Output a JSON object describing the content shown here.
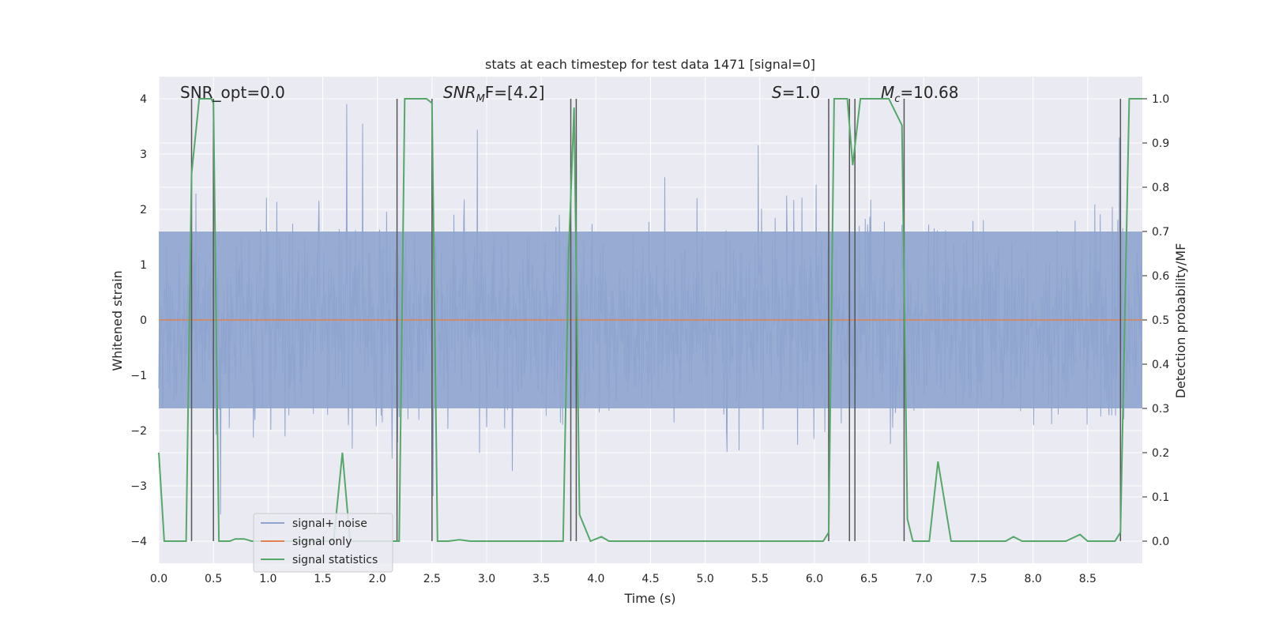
{
  "chart_data": {
    "type": "line",
    "title": "stats at each timestep for test data 1471 [signal=0]",
    "xlabel": "Time (s)",
    "ylabel_left": "Whitened strain",
    "ylabel_right": "Detection probability/MF",
    "xlim": [
      0.0,
      9.0
    ],
    "ylim_left": [
      -4.4,
      4.4
    ],
    "ylim_right": [
      -0.05,
      1.05
    ],
    "x_ticks": [
      "0.0",
      "0.5",
      "1.0",
      "1.5",
      "2.0",
      "2.5",
      "3.0",
      "3.5",
      "4.0",
      "4.5",
      "5.0",
      "5.5",
      "6.0",
      "6.5",
      "7.0",
      "7.5",
      "8.0",
      "8.5"
    ],
    "y_ticks_left": [
      "−4",
      "−3",
      "−2",
      "−1",
      "0",
      "1",
      "2",
      "3",
      "4"
    ],
    "y_ticks_right": [
      "0.0",
      "0.1",
      "0.2",
      "0.3",
      "0.4",
      "0.5",
      "0.6",
      "0.7",
      "0.8",
      "0.9",
      "1.0"
    ],
    "annotations": {
      "snr_opt": "SNR_opt=0.0",
      "snr_mf_base": "SNR",
      "snr_mf_sub": "M",
      "snr_mf_rest": "F=[4.2]",
      "s_stat": "S",
      "s_rest": "=1.0",
      "mc_base": "M",
      "mc_sub": "c",
      "mc_rest": "=10.68"
    },
    "legend": {
      "placement": "lower-left",
      "entries": [
        "signal+ noise",
        "signal only",
        "signal statistics"
      ]
    },
    "colors": {
      "noise": "#8fa5cf",
      "signal_only": "#dd8452",
      "statistics": "#55a868",
      "vlines": "#555555",
      "background": "#eaeaf2",
      "grid": "#ffffff"
    },
    "series": [
      {
        "name": "signal+ noise",
        "note": "whitened strain, dense noise, roughly |y| up to ~2 typical with spikes to ~4"
      },
      {
        "name": "signal only",
        "values_constant": 0.0
      },
      {
        "name": "signal statistics",
        "axis": "right",
        "points": [
          [
            0.0,
            0.2
          ],
          [
            0.05,
            0.0
          ],
          [
            0.25,
            0.0
          ],
          [
            0.3,
            0.83
          ],
          [
            0.37,
            1.0
          ],
          [
            0.48,
            1.0
          ],
          [
            0.5,
            0.99
          ],
          [
            0.55,
            0.0
          ],
          [
            0.65,
            0.0
          ],
          [
            0.7,
            0.005
          ],
          [
            0.78,
            0.005
          ],
          [
            0.85,
            0.0
          ],
          [
            1.6,
            0.0
          ],
          [
            1.68,
            0.2
          ],
          [
            1.75,
            0.0
          ],
          [
            2.2,
            0.0
          ],
          [
            2.25,
            1.0
          ],
          [
            2.45,
            1.0
          ],
          [
            2.5,
            0.99
          ],
          [
            2.55,
            0.0
          ],
          [
            2.65,
            0.0
          ],
          [
            2.75,
            0.003
          ],
          [
            2.85,
            0.0
          ],
          [
            3.7,
            0.0
          ],
          [
            3.75,
            0.65
          ],
          [
            3.8,
            0.98
          ],
          [
            3.85,
            0.06
          ],
          [
            3.95,
            0.0
          ],
          [
            4.05,
            0.01
          ],
          [
            4.12,
            0.0
          ],
          [
            6.08,
            0.0
          ],
          [
            6.13,
            0.02
          ],
          [
            6.18,
            1.0
          ],
          [
            6.3,
            1.0
          ],
          [
            6.35,
            0.85
          ],
          [
            6.42,
            1.0
          ],
          [
            6.68,
            1.0
          ],
          [
            6.8,
            0.94
          ],
          [
            6.85,
            0.05
          ],
          [
            6.9,
            0.0
          ],
          [
            7.05,
            0.0
          ],
          [
            7.13,
            0.18
          ],
          [
            7.25,
            0.0
          ],
          [
            7.75,
            0.0
          ],
          [
            7.82,
            0.01
          ],
          [
            7.9,
            0.0
          ],
          [
            8.3,
            0.0
          ],
          [
            8.43,
            0.015
          ],
          [
            8.5,
            0.0
          ],
          [
            8.75,
            0.0
          ],
          [
            8.8,
            0.02
          ],
          [
            8.88,
            1.0
          ],
          [
            9.0,
            1.0
          ]
        ]
      }
    ],
    "vertical_markers": [
      0.3,
      0.5,
      2.18,
      2.5,
      3.77,
      3.82,
      6.13,
      6.32,
      6.37,
      6.82,
      8.8
    ]
  }
}
